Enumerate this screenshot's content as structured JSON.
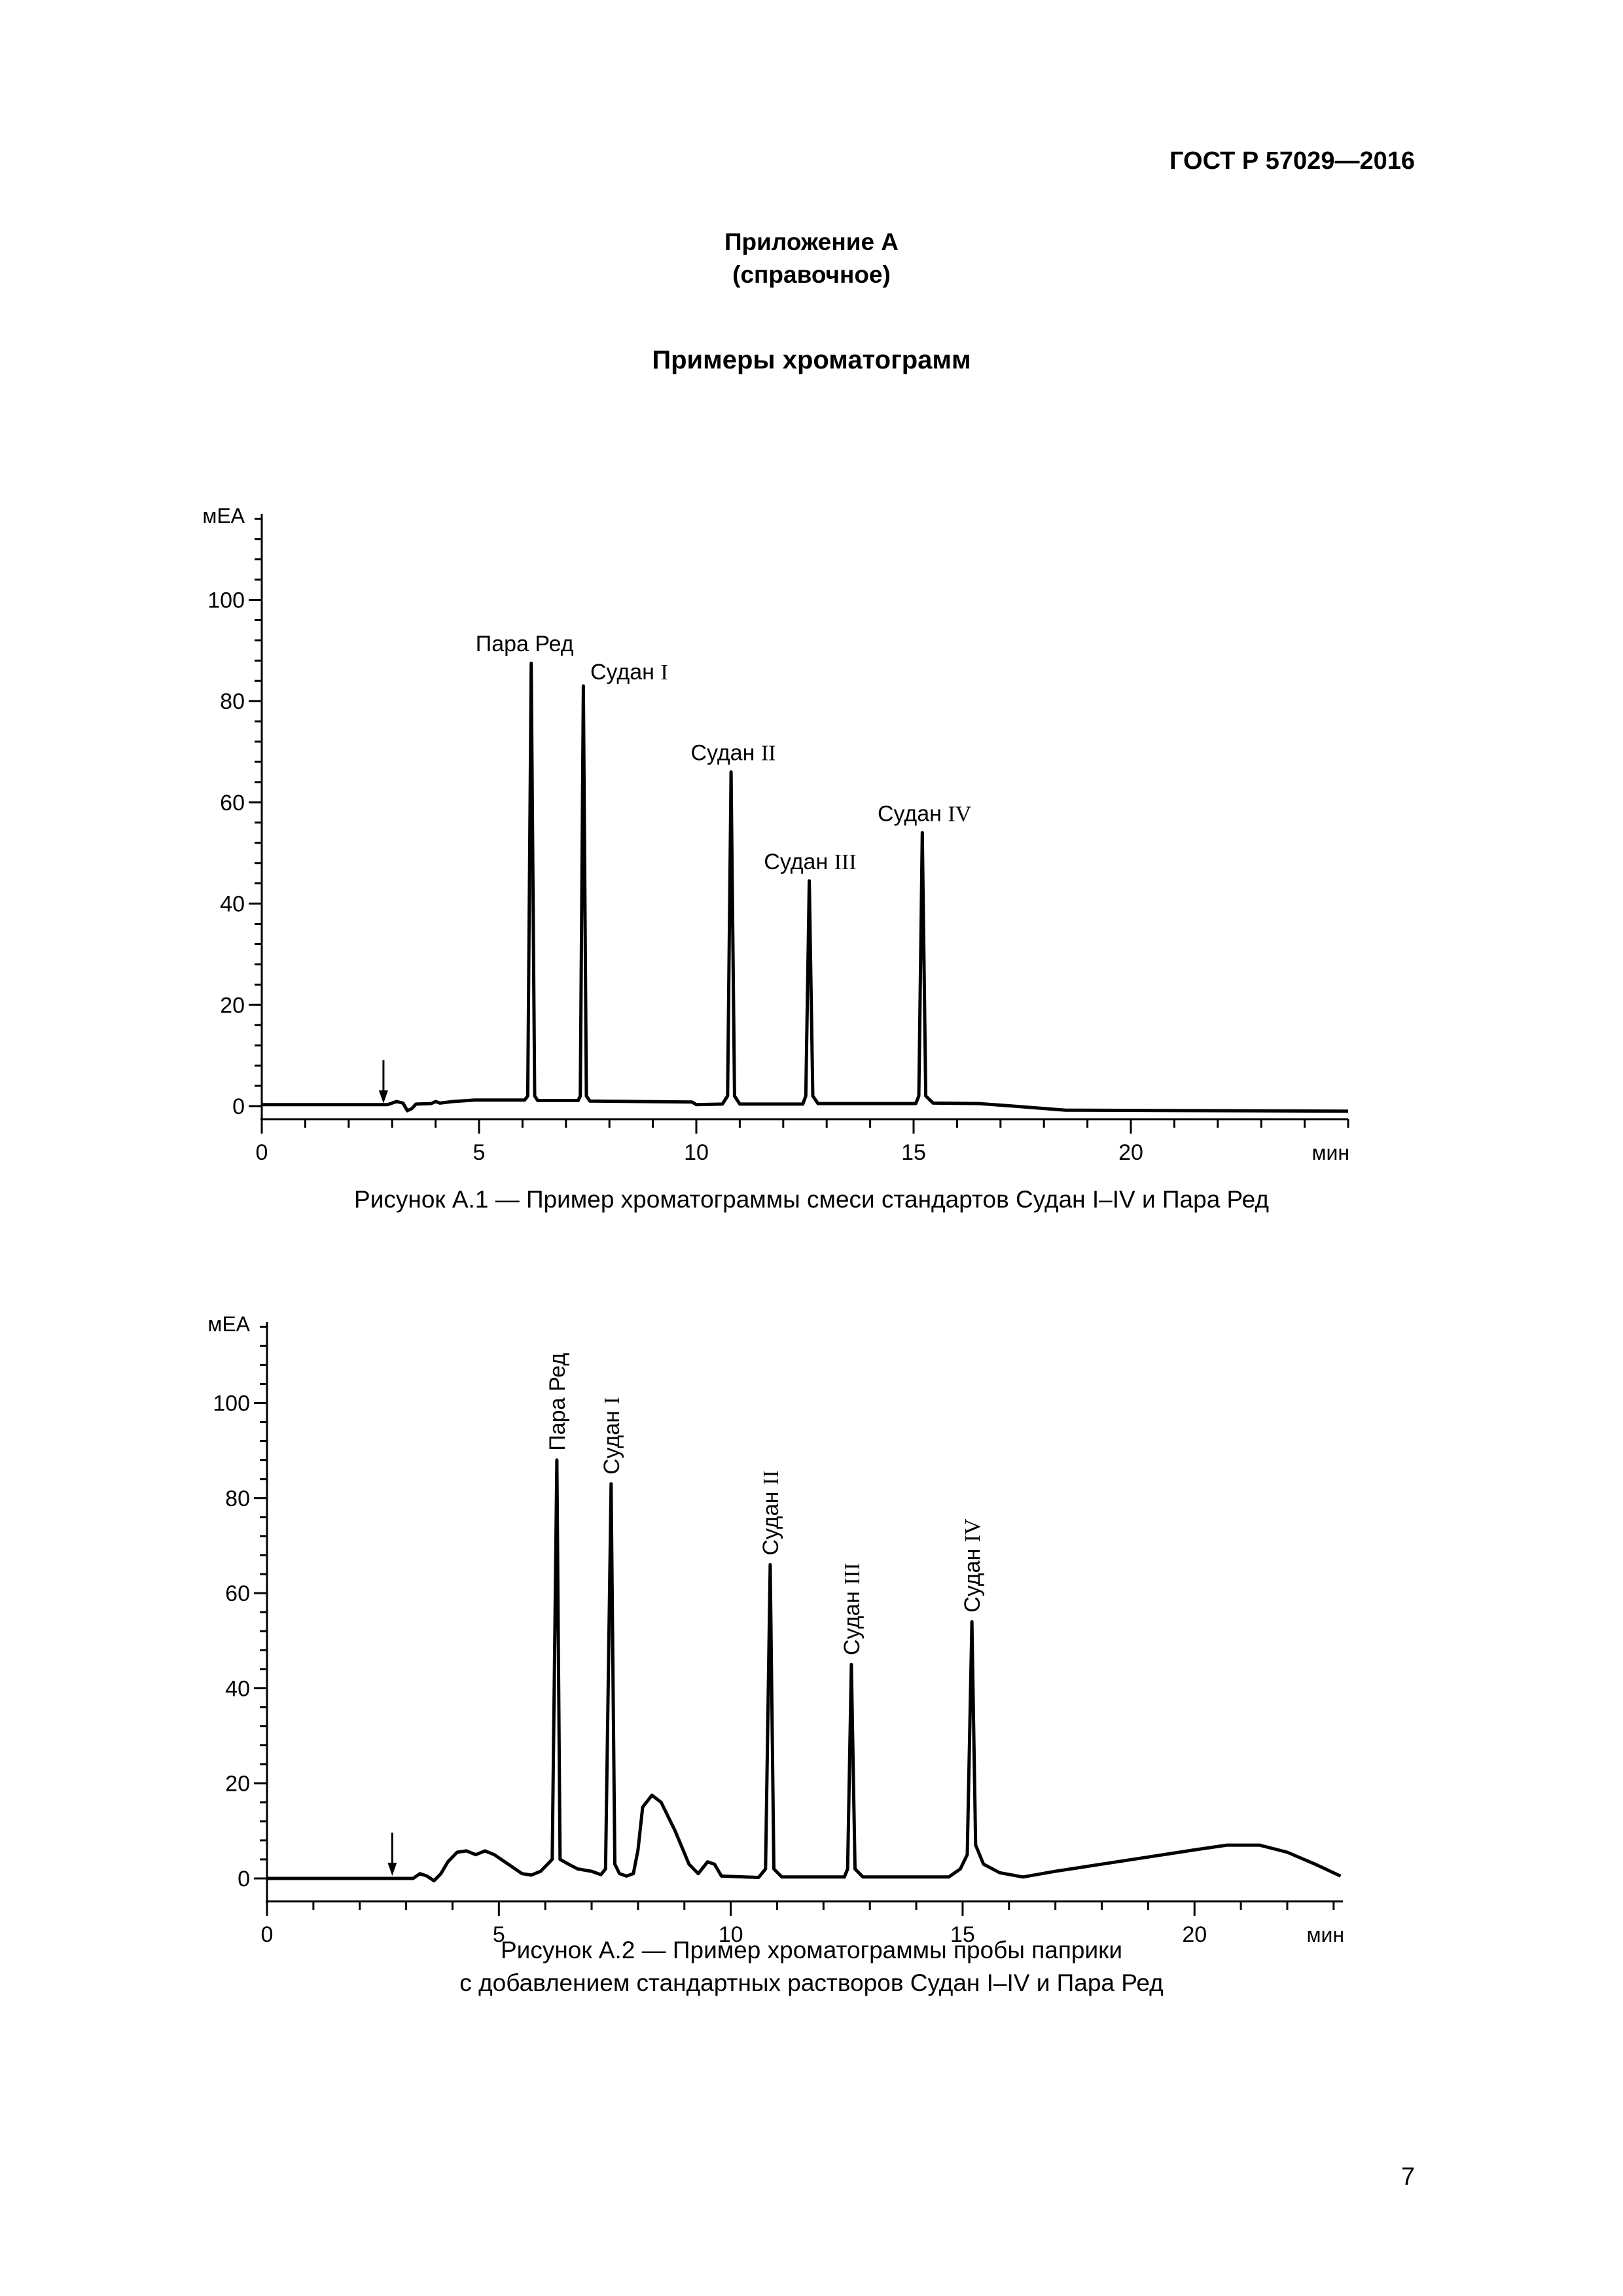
{
  "header": {
    "standard_id": "ГОСТ Р 57029—2016"
  },
  "annex": {
    "line1": "Приложение А",
    "line2": "(справочное)",
    "title": "Примеры хроматограмм"
  },
  "page_number": "7",
  "figures": [
    {
      "caption_lines": [
        "Рисунок А.1 — Пример хроматограммы смеси стандартов Судан I–IV и Пара Ред"
      ]
    },
    {
      "caption_lines": [
        "Рисунок А.2 — Пример хроматограммы пробы паприки",
        "с добавлением стандартных растворов Судан I–IV и Пара Ред"
      ]
    }
  ],
  "chart_data": [
    {
      "type": "line",
      "title": "",
      "ylabel": "мЕА",
      "xlabel": "мин",
      "xlim": [
        0,
        25
      ],
      "ylim": [
        0,
        117
      ],
      "xticks": [
        0,
        5,
        10,
        15,
        20
      ],
      "yticks": [
        0,
        20,
        40,
        60,
        80,
        100
      ],
      "injection_marker_x": 2.8,
      "peak_labels": [
        {
          "text": "Пара Ред",
          "x": 6.2,
          "y": 87.5,
          "vertical": false
        },
        {
          "text": "Судан I",
          "x": 7.4,
          "y": 83,
          "vertical": false
        },
        {
          "text": "Судан II",
          "x": 10.85,
          "y": 66,
          "vertical": false
        },
        {
          "text": "Судан III",
          "x": 12.65,
          "y": 44.5,
          "vertical": false
        },
        {
          "text": "Судан IV",
          "x": 15.25,
          "y": 54,
          "vertical": false
        }
      ],
      "series": [
        {
          "values": [
            [
              0,
              0.3
            ],
            [
              2.9,
              0.3
            ],
            [
              3.1,
              0.9
            ],
            [
              3.25,
              0.6
            ],
            [
              3.35,
              -0.9
            ],
            [
              3.45,
              -0.5
            ],
            [
              3.55,
              0.4
            ],
            [
              3.9,
              0.5
            ],
            [
              4.0,
              0.9
            ],
            [
              4.1,
              0.6
            ],
            [
              4.4,
              0.9
            ],
            [
              4.9,
              1.2
            ],
            [
              6.05,
              1.2
            ],
            [
              6.12,
              2
            ],
            [
              6.2,
              87.5
            ],
            [
              6.28,
              2
            ],
            [
              6.35,
              1.1
            ],
            [
              7.28,
              1.1
            ],
            [
              7.33,
              2
            ],
            [
              7.4,
              83
            ],
            [
              7.47,
              2
            ],
            [
              7.55,
              1.0
            ],
            [
              9.9,
              0.8
            ],
            [
              10.0,
              0.3
            ],
            [
              10.6,
              0.4
            ],
            [
              10.72,
              2
            ],
            [
              10.8,
              66
            ],
            [
              10.88,
              2
            ],
            [
              11.0,
              0.4
            ],
            [
              12.45,
              0.4
            ],
            [
              12.52,
              2
            ],
            [
              12.6,
              44.5
            ],
            [
              12.68,
              2
            ],
            [
              12.8,
              0.5
            ],
            [
              15.05,
              0.5
            ],
            [
              15.12,
              2
            ],
            [
              15.2,
              54
            ],
            [
              15.28,
              2
            ],
            [
              15.45,
              0.6
            ],
            [
              16.5,
              0.5
            ],
            [
              17.3,
              0.0
            ],
            [
              18.5,
              -0.8
            ],
            [
              25,
              -1.0
            ]
          ]
        }
      ]
    },
    {
      "type": "line",
      "title": "",
      "ylabel": "мЕА",
      "xlabel": "мин",
      "xlim": [
        0,
        23.2
      ],
      "ylim": [
        0,
        117
      ],
      "xticks": [
        0,
        5,
        10,
        15,
        20
      ],
      "yticks": [
        0,
        20,
        40,
        60,
        80,
        100
      ],
      "injection_marker_x": 2.7,
      "peak_labels": [
        {
          "text": "Пара Ред",
          "x": 6.25,
          "y": 88,
          "vertical": true
        },
        {
          "text": "Судан I",
          "x": 7.42,
          "y": 83,
          "vertical": true
        },
        {
          "text": "Судан II",
          "x": 10.85,
          "y": 66,
          "vertical": true
        },
        {
          "text": "Судан III",
          "x": 12.6,
          "y": 45,
          "vertical": true
        },
        {
          "text": "Судан IV",
          "x": 15.2,
          "y": 54,
          "vertical": true
        }
      ],
      "series": [
        {
          "values": [
            [
              0,
              0
            ],
            [
              3.15,
              0
            ],
            [
              3.3,
              1
            ],
            [
              3.45,
              0.5
            ],
            [
              3.6,
              -0.5
            ],
            [
              3.75,
              1
            ],
            [
              3.9,
              3.5
            ],
            [
              4.1,
              5.5
            ],
            [
              4.3,
              5.8
            ],
            [
              4.5,
              5
            ],
            [
              4.7,
              5.8
            ],
            [
              4.9,
              5
            ],
            [
              5.2,
              3
            ],
            [
              5.5,
              1
            ],
            [
              5.7,
              0.7
            ],
            [
              5.9,
              1.5
            ],
            [
              6.05,
              3
            ],
            [
              6.15,
              4
            ],
            [
              6.25,
              88
            ],
            [
              6.32,
              4
            ],
            [
              6.5,
              3
            ],
            [
              6.7,
              2
            ],
            [
              7.0,
              1.5
            ],
            [
              7.2,
              0.8
            ],
            [
              7.3,
              2
            ],
            [
              7.42,
              83
            ],
            [
              7.5,
              3
            ],
            [
              7.6,
              1
            ],
            [
              7.75,
              0.5
            ],
            [
              7.9,
              1
            ],
            [
              8.0,
              6
            ],
            [
              8.1,
              15
            ],
            [
              8.3,
              17.5
            ],
            [
              8.5,
              16
            ],
            [
              8.8,
              10
            ],
            [
              9.1,
              3
            ],
            [
              9.3,
              1
            ],
            [
              9.5,
              3.5
            ],
            [
              9.65,
              3
            ],
            [
              9.8,
              0.5
            ],
            [
              10.6,
              0.2
            ],
            [
              10.75,
              2
            ],
            [
              10.85,
              66
            ],
            [
              10.93,
              2
            ],
            [
              11.1,
              0.3
            ],
            [
              12.45,
              0.3
            ],
            [
              12.52,
              2
            ],
            [
              12.6,
              45
            ],
            [
              12.68,
              2
            ],
            [
              12.85,
              0.3
            ],
            [
              14.7,
              0.3
            ],
            [
              14.95,
              2
            ],
            [
              15.1,
              5
            ],
            [
              15.2,
              54
            ],
            [
              15.28,
              7
            ],
            [
              15.45,
              3
            ],
            [
              15.8,
              1.2
            ],
            [
              16.3,
              0.3
            ],
            [
              17,
              1.5
            ],
            [
              18,
              3
            ],
            [
              19,
              4.5
            ],
            [
              20,
              6
            ],
            [
              20.7,
              7
            ],
            [
              21.4,
              7
            ],
            [
              22,
              5.5
            ],
            [
              22.6,
              3
            ],
            [
              23.15,
              0.5
            ]
          ]
        }
      ]
    }
  ]
}
